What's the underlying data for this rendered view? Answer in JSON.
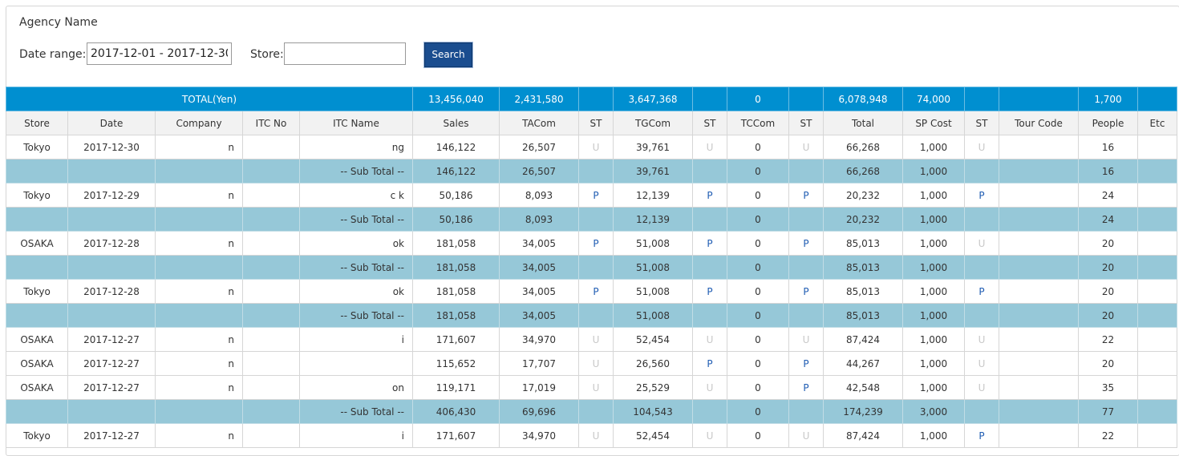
{
  "filters": {
    "agency_label": "Agency Name",
    "date_range_label": "Date range:",
    "date_range_value": "2017-12-01 - 2017-12-30",
    "store_label": "Store:",
    "store_value": "",
    "search_label": "Search"
  },
  "totals": {
    "label": "TOTAL(Yen)",
    "sales": "13,456,040",
    "tacom": "2,431,580",
    "tgcom": "3,647,368",
    "tccom": "0",
    "total": "6,078,948",
    "sp_cost": "74,000",
    "people": "1,700"
  },
  "columns": [
    "Store",
    "Date",
    "Company",
    "ITC No",
    "ITC Name",
    "Sales",
    "TACom",
    "ST",
    "TGCom",
    "ST",
    "TCCom",
    "ST",
    "Total",
    "SP Cost",
    "ST",
    "Tour Code",
    "People",
    "Etc"
  ],
  "rows": [
    {
      "store": "Tokyo",
      "date": "2017-12-30",
      "company": "n",
      "itc_no": "",
      "itc_name": "ng",
      "sales": "146,122",
      "tacom": "26,507",
      "st1": "U",
      "tgcom": "39,761",
      "st2": "U",
      "tccom": "0",
      "st3": "U",
      "total": "66,268",
      "sp_cost": "1,000",
      "st4": "U",
      "tour_code": "",
      "people": "16",
      "etc": ""
    },
    {
      "subtotal": true,
      "itc_name": "-- Sub Total --",
      "sales": "146,122",
      "tacom": "26,507",
      "tgcom": "39,761",
      "tccom": "0",
      "total": "66,268",
      "sp_cost": "1,000",
      "people": "16"
    },
    {
      "store": "Tokyo",
      "date": "2017-12-29",
      "company": "n",
      "itc_no": "",
      "itc_name": "c          k",
      "sales": "50,186",
      "tacom": "8,093",
      "st1": "P",
      "tgcom": "12,139",
      "st2": "P",
      "tccom": "0",
      "st3": "P",
      "total": "20,232",
      "sp_cost": "1,000",
      "st4": "P",
      "tour_code": "",
      "people": "24",
      "etc": ""
    },
    {
      "subtotal": true,
      "itc_name": "-- Sub Total --",
      "sales": "50,186",
      "tacom": "8,093",
      "tgcom": "12,139",
      "tccom": "0",
      "total": "20,232",
      "sp_cost": "1,000",
      "people": "24"
    },
    {
      "store": "OSAKA",
      "date": "2017-12-28",
      "company": "n",
      "itc_no": "",
      "itc_name": "ok",
      "sales": "181,058",
      "tacom": "34,005",
      "st1": "P",
      "tgcom": "51,008",
      "st2": "P",
      "tccom": "0",
      "st3": "P",
      "total": "85,013",
      "sp_cost": "1,000",
      "st4": "U",
      "tour_code": "",
      "people": "20",
      "etc": ""
    },
    {
      "subtotal": true,
      "itc_name": "-- Sub Total --",
      "sales": "181,058",
      "tacom": "34,005",
      "tgcom": "51,008",
      "tccom": "0",
      "total": "85,013",
      "sp_cost": "1,000",
      "people": "20"
    },
    {
      "store": "Tokyo",
      "date": "2017-12-28",
      "company": "n",
      "itc_no": "",
      "itc_name": "ok",
      "sales": "181,058",
      "tacom": "34,005",
      "st1": "P",
      "tgcom": "51,008",
      "st2": "P",
      "tccom": "0",
      "st3": "P",
      "total": "85,013",
      "sp_cost": "1,000",
      "st4": "P",
      "tour_code": "",
      "people": "20",
      "etc": ""
    },
    {
      "subtotal": true,
      "itc_name": "-- Sub Total --",
      "sales": "181,058",
      "tacom": "34,005",
      "tgcom": "51,008",
      "tccom": "0",
      "total": "85,013",
      "sp_cost": "1,000",
      "people": "20"
    },
    {
      "store": "OSAKA",
      "date": "2017-12-27",
      "company": "n",
      "itc_no": "",
      "itc_name": "i",
      "sales": "171,607",
      "tacom": "34,970",
      "st1": "U",
      "tgcom": "52,454",
      "st2": "U",
      "tccom": "0",
      "st3": "U",
      "total": "87,424",
      "sp_cost": "1,000",
      "st4": "U",
      "tour_code": "",
      "people": "22",
      "etc": ""
    },
    {
      "store": "OSAKA",
      "date": "2017-12-27",
      "company": "n",
      "itc_no": "",
      "itc_name": "",
      "sales": "115,652",
      "tacom": "17,707",
      "st1": "U",
      "tgcom": "26,560",
      "st2": "P",
      "tccom": "0",
      "st3": "P",
      "total": "44,267",
      "sp_cost": "1,000",
      "st4": "U",
      "tour_code": "",
      "people": "20",
      "etc": ""
    },
    {
      "store": "OSAKA",
      "date": "2017-12-27",
      "company": "n",
      "itc_no": "",
      "itc_name": "on",
      "sales": "119,171",
      "tacom": "17,019",
      "st1": "U",
      "tgcom": "25,529",
      "st2": "U",
      "tccom": "0",
      "st3": "P",
      "total": "42,548",
      "sp_cost": "1,000",
      "st4": "U",
      "tour_code": "",
      "people": "35",
      "etc": ""
    },
    {
      "subtotal": true,
      "itc_name": "-- Sub Total --",
      "sales": "406,430",
      "tacom": "69,696",
      "tgcom": "104,543",
      "tccom": "0",
      "total": "174,239",
      "sp_cost": "3,000",
      "people": "77"
    },
    {
      "store": "Tokyo",
      "date": "2017-12-27",
      "company": "n",
      "itc_no": "",
      "itc_name": "i",
      "sales": "171,607",
      "tacom": "34,970",
      "st1": "U",
      "tgcom": "52,454",
      "st2": "U",
      "tccom": "0",
      "st3": "U",
      "total": "87,424",
      "sp_cost": "1,000",
      "st4": "P",
      "tour_code": "",
      "people": "22",
      "etc": ""
    }
  ]
}
